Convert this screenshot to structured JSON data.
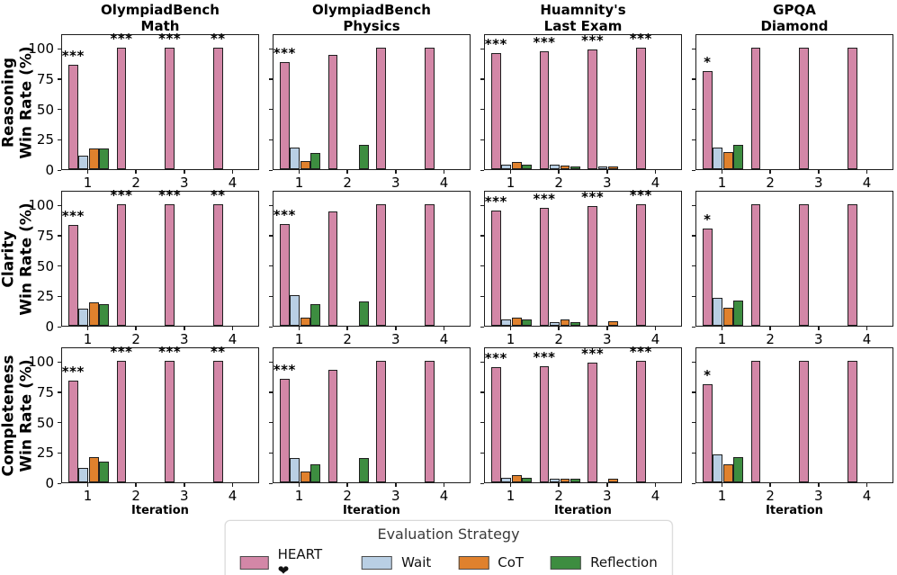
{
  "legend": {
    "title": "Evaluation Strategy",
    "entries": [
      {
        "label": "HEART ❤",
        "color": "#d387a7"
      },
      {
        "label": "Wait",
        "color": "#b9cfe4"
      },
      {
        "label": "CoT",
        "color": "#e0812d"
      },
      {
        "label": "Reflection",
        "color": "#3d8d40"
      }
    ]
  },
  "chart_data": {
    "type": "bar",
    "x": [
      1,
      2,
      3,
      4
    ],
    "xlabel": "Iteration",
    "yticks": [
      0,
      25,
      50,
      75,
      100
    ],
    "ylim": [
      0,
      112
    ],
    "grid": false,
    "legend_position": "bottom-center",
    "col_titles": [
      "OlympiadBench\nMath",
      "OlympiadBench\nPhysics",
      "Huamnity's\nLast Exam",
      "GPQA\nDiamond"
    ],
    "row_labels": [
      "Reasoning\nWin Rate (%)",
      "Clarity\nWin Rate (%)",
      "Completeness\nWin Rate (%)"
    ],
    "series_names": [
      "HEART ❤",
      "Wait",
      "CoT",
      "Reflection"
    ],
    "series_colors": [
      "#d387a7",
      "#b9cfe4",
      "#e0812d",
      "#3d8d40"
    ],
    "edge_color": "#1f1f1f",
    "subplots": [
      {
        "row": 0,
        "col": 0,
        "metric": "Reasoning",
        "benchmark": "OlympiadBench Math",
        "series": [
          [
            86,
            100,
            100,
            100
          ],
          [
            11,
            0,
            0,
            0
          ],
          [
            17,
            0,
            0,
            0
          ],
          [
            17,
            0,
            0,
            0
          ]
        ],
        "sig": [
          "***",
          "***",
          "***",
          "**"
        ]
      },
      {
        "row": 0,
        "col": 1,
        "metric": "Reasoning",
        "benchmark": "OlympiadBench Physics",
        "series": [
          [
            88,
            94,
            100,
            100
          ],
          [
            18,
            0,
            0,
            0
          ],
          [
            7,
            0,
            0,
            0
          ],
          [
            13,
            20,
            0,
            0
          ]
        ],
        "sig": [
          "***",
          "",
          "",
          ""
        ]
      },
      {
        "row": 0,
        "col": 2,
        "metric": "Reasoning",
        "benchmark": "Huamnity's Last Exam",
        "series": [
          [
            96,
            97,
            99,
            100
          ],
          [
            4,
            4,
            2,
            0
          ],
          [
            6,
            3,
            2,
            0
          ],
          [
            4,
            2,
            0,
            0
          ]
        ],
        "sig": [
          "***",
          "***",
          "***",
          "***"
        ]
      },
      {
        "row": 0,
        "col": 3,
        "metric": "Reasoning",
        "benchmark": "GPQA Diamond",
        "series": [
          [
            81,
            100,
            100,
            100
          ],
          [
            18,
            0,
            0,
            0
          ],
          [
            14,
            0,
            0,
            0
          ],
          [
            20,
            0,
            0,
            0
          ]
        ],
        "sig": [
          "*",
          "",
          "",
          ""
        ]
      },
      {
        "row": 1,
        "col": 0,
        "metric": "Clarity",
        "benchmark": "OlympiadBench Math",
        "series": [
          [
            83,
            100,
            100,
            100
          ],
          [
            14,
            0,
            0,
            0
          ],
          [
            19,
            0,
            0,
            0
          ],
          [
            18,
            0,
            0,
            0
          ]
        ],
        "sig": [
          "***",
          "***",
          "***",
          "**"
        ]
      },
      {
        "row": 1,
        "col": 1,
        "metric": "Clarity",
        "benchmark": "OlympiadBench Physics",
        "series": [
          [
            84,
            94,
            100,
            100
          ],
          [
            25,
            0,
            0,
            0
          ],
          [
            7,
            0,
            0,
            0
          ],
          [
            18,
            20,
            0,
            0
          ]
        ],
        "sig": [
          "***",
          "",
          "",
          ""
        ]
      },
      {
        "row": 1,
        "col": 2,
        "metric": "Clarity",
        "benchmark": "Huamnity's Last Exam",
        "series": [
          [
            95,
            97,
            99,
            100
          ],
          [
            5,
            3,
            0,
            0
          ],
          [
            7,
            5,
            4,
            0
          ],
          [
            5,
            3,
            0,
            0
          ]
        ],
        "sig": [
          "***",
          "***",
          "***",
          "***"
        ]
      },
      {
        "row": 1,
        "col": 3,
        "metric": "Clarity",
        "benchmark": "GPQA Diamond",
        "series": [
          [
            80,
            100,
            100,
            100
          ],
          [
            23,
            0,
            0,
            0
          ],
          [
            15,
            0,
            0,
            0
          ],
          [
            21,
            0,
            0,
            0
          ]
        ],
        "sig": [
          "*",
          "",
          "",
          ""
        ]
      },
      {
        "row": 2,
        "col": 0,
        "metric": "Completeness",
        "benchmark": "OlympiadBench Math",
        "series": [
          [
            84,
            100,
            100,
            100
          ],
          [
            12,
            0,
            0,
            0
          ],
          [
            21,
            0,
            0,
            0
          ],
          [
            17,
            0,
            0,
            0
          ]
        ],
        "sig": [
          "***",
          "***",
          "***",
          "**"
        ]
      },
      {
        "row": 2,
        "col": 1,
        "metric": "Completeness",
        "benchmark": "OlympiadBench Physics",
        "series": [
          [
            85,
            93,
            100,
            100
          ],
          [
            20,
            0,
            0,
            0
          ],
          [
            9,
            0,
            0,
            0
          ],
          [
            15,
            20,
            0,
            0
          ]
        ],
        "sig": [
          "***",
          "",
          "",
          ""
        ]
      },
      {
        "row": 2,
        "col": 2,
        "metric": "Completeness",
        "benchmark": "Huamnity's Last Exam",
        "series": [
          [
            95,
            96,
            99,
            100
          ],
          [
            4,
            3,
            0,
            0
          ],
          [
            6,
            3,
            3,
            0
          ],
          [
            4,
            3,
            0,
            0
          ]
        ],
        "sig": [
          "***",
          "***",
          "***",
          "***"
        ]
      },
      {
        "row": 2,
        "col": 3,
        "metric": "Completeness",
        "benchmark": "GPQA Diamond",
        "series": [
          [
            81,
            100,
            100,
            100
          ],
          [
            23,
            0,
            0,
            0
          ],
          [
            15,
            0,
            0,
            0
          ],
          [
            21,
            0,
            0,
            0
          ]
        ],
        "sig": [
          "*",
          "",
          "",
          ""
        ]
      }
    ]
  }
}
